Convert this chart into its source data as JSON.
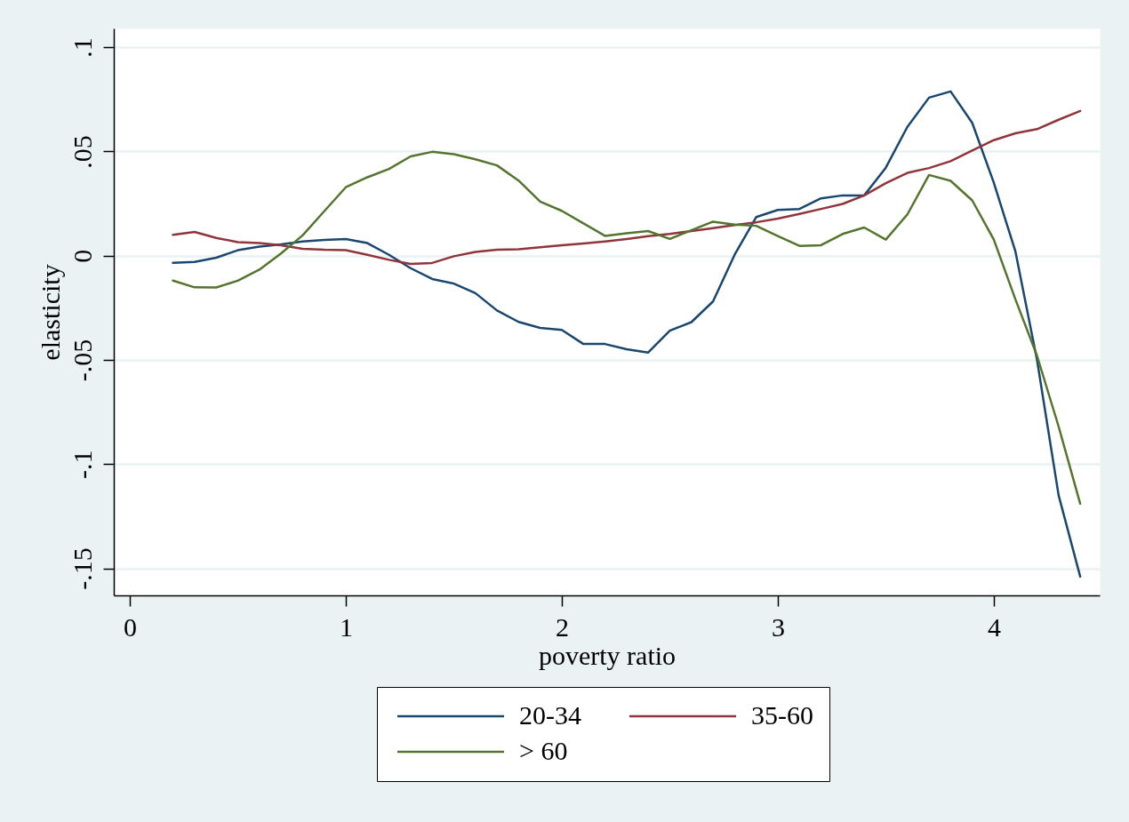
{
  "chart_data": {
    "type": "line",
    "xlabel": "poverty ratio",
    "ylabel": "elasticity",
    "x": [
      0.2,
      0.3,
      0.4,
      0.5,
      0.6,
      0.7,
      0.8,
      0.9,
      1.0,
      1.1,
      1.2,
      1.3,
      1.4,
      1.5,
      1.6,
      1.7,
      1.8,
      1.9,
      2.0,
      2.1,
      2.2,
      2.3,
      2.4,
      2.5,
      2.6,
      2.7,
      2.8,
      2.9,
      3.0,
      3.1,
      3.2,
      3.3,
      3.4,
      3.5,
      3.6,
      3.7,
      3.8,
      3.9,
      4.0,
      4.1,
      4.2,
      4.3,
      4.4
    ],
    "series": [
      {
        "name": "20-34",
        "color": "#1a476f",
        "values": [
          -0.0034,
          -0.003,
          -0.001,
          0.0026,
          0.0043,
          0.0054,
          0.0068,
          0.0075,
          0.008,
          0.006,
          0.0004,
          -0.006,
          -0.0112,
          -0.0134,
          -0.018,
          -0.0263,
          -0.0318,
          -0.0347,
          -0.0356,
          -0.0424,
          -0.0424,
          -0.0449,
          -0.0465,
          -0.036,
          -0.0319,
          -0.022,
          0.0004,
          0.0185,
          0.0219,
          0.0224,
          0.0275,
          0.0289,
          0.0289,
          0.0422,
          0.0618,
          0.0758,
          0.0788,
          0.0637,
          0.035,
          0.002,
          -0.05,
          -0.115,
          -0.154
        ]
      },
      {
        "name": "35-60",
        "color": "#90353b",
        "values": [
          0.01,
          0.0114,
          0.0085,
          0.0065,
          0.006,
          0.005,
          0.0033,
          0.0028,
          0.0026,
          0.0004,
          -0.002,
          -0.004,
          -0.0035,
          -0.0003,
          0.0018,
          0.0028,
          0.0031,
          0.004,
          0.005,
          0.0058,
          0.0068,
          0.008,
          0.0093,
          0.0104,
          0.0118,
          0.0132,
          0.0147,
          0.016,
          0.0178,
          0.02,
          0.0224,
          0.0248,
          0.0289,
          0.0348,
          0.0397,
          0.042,
          0.0453,
          0.0504,
          0.0554,
          0.0587,
          0.0607,
          0.0652,
          0.0694
        ]
      },
      {
        "name": "> 60",
        "color": "#55752f",
        "values": [
          -0.012,
          -0.0152,
          -0.0153,
          -0.012,
          -0.0067,
          0.001,
          0.0097,
          0.0213,
          0.0328,
          0.0376,
          0.0416,
          0.0476,
          0.0498,
          0.0487,
          0.0462,
          0.0433,
          0.036,
          0.0259,
          0.0215,
          0.0155,
          0.0095,
          0.0107,
          0.0118,
          0.008,
          0.0122,
          0.0163,
          0.0149,
          0.0143,
          0.0094,
          0.0047,
          0.005,
          0.0104,
          0.0135,
          0.0077,
          0.0198,
          0.0387,
          0.0359,
          0.0265,
          0.0077,
          -0.021,
          -0.048,
          -0.082,
          -0.119
        ]
      }
    ],
    "xlim": [
      -0.074,
      4.49
    ],
    "ylim": [
      -0.163,
      0.109
    ],
    "xticks": [
      0,
      1,
      2,
      3,
      4
    ],
    "yticks": [
      {
        "value": 0.1,
        "label": ".1"
      },
      {
        "value": 0.05,
        "label": ".05"
      },
      {
        "value": 0,
        "label": "0"
      },
      {
        "value": -0.05,
        "label": "-.05"
      },
      {
        "value": -0.1,
        "label": "-.1"
      },
      {
        "value": -0.15,
        "label": "-.15"
      }
    ],
    "grid": "y",
    "legend": "bottom"
  }
}
